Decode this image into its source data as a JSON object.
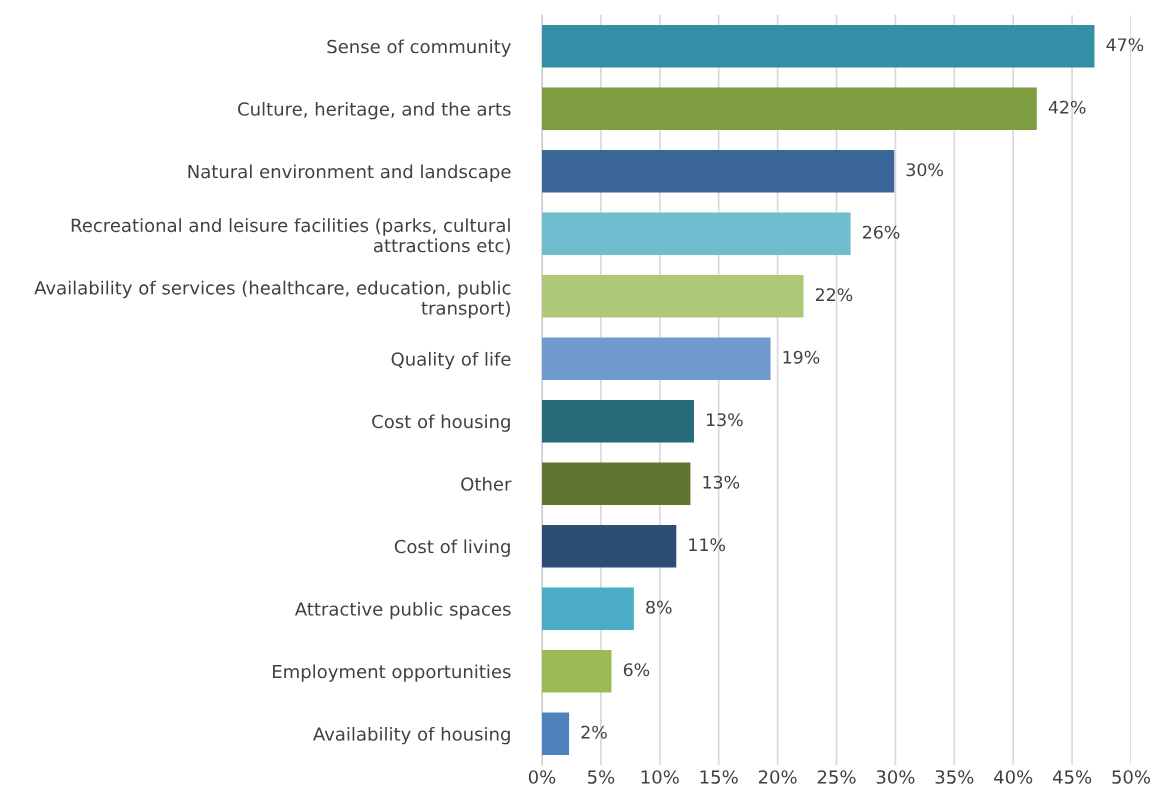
{
  "chart_data": {
    "type": "bar",
    "orientation": "horizontal",
    "categories": [
      "Sense of community",
      "Culture, heritage, and the arts",
      "Natural environment and landscape",
      "Recreational and leisure facilities (parks, cultural\nattractions etc)",
      "Availability of services (healthcare, education, public\ntransport)",
      "Quality of life",
      "Cost of housing",
      "Other",
      "Cost of living",
      "Attractive public spaces",
      "Employment opportunities",
      "Availability of housing"
    ],
    "values": [
      46.9,
      42.0,
      29.9,
      26.2,
      22.2,
      19.4,
      12.9,
      12.6,
      11.4,
      7.8,
      5.9,
      2.3
    ],
    "value_labels": [
      "47%",
      "42%",
      "30%",
      "26%",
      "22%",
      "19%",
      "13%",
      "13%",
      "11%",
      "8%",
      "6%",
      "2%"
    ],
    "colors": [
      "#348fa6",
      "#7e9c40",
      "#3a6699",
      "#70bdd0",
      "#adc978",
      "#709acc",
      "#256b78",
      "#5f7530",
      "#2d4d77",
      "#4badc5",
      "#9bbb59",
      "#4f81bd"
    ],
    "xlim": [
      0,
      50
    ],
    "xticks": [
      {
        "value": 0,
        "label": "0%"
      },
      {
        "value": 5,
        "label": "5%"
      },
      {
        "value": 10,
        "label": "10%"
      },
      {
        "value": 15,
        "label": "15%"
      },
      {
        "value": 20,
        "label": "20%"
      },
      {
        "value": 25,
        "label": "25%"
      },
      {
        "value": 30,
        "label": "30%"
      },
      {
        "value": 35,
        "label": "35%"
      },
      {
        "value": 40,
        "label": "40%"
      },
      {
        "value": 45,
        "label": "45%"
      },
      {
        "value": 50,
        "label": "50%"
      }
    ],
    "grid": "x"
  }
}
